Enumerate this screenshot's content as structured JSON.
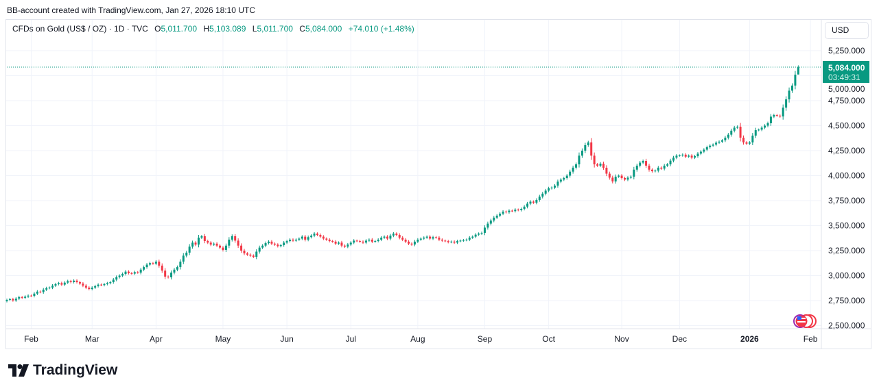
{
  "caption": "BB-account created with TradingView.com, Jan 27, 2026 18:10 UTC",
  "legend": {
    "symbol": "CFDs on Gold (US$ / OZ) · 1D · TVC",
    "o_label": "O",
    "o": "5,011.700",
    "h_label": "H",
    "h": "5,103.089",
    "l_label": "L",
    "l": "5,011.700",
    "c_label": "C",
    "c": "5,084.000",
    "change": "+74.010 (+1.48%)"
  },
  "currency_button": "USD",
  "last_price": {
    "value": "5,084.000",
    "countdown": "03:49:31"
  },
  "brand": "TradingView",
  "colors": {
    "up": "#089981",
    "down": "#f23645",
    "grid": "#f0f3fa"
  },
  "chart_data": {
    "type": "candlestick",
    "title": "CFDs on Gold (US$ / OZ) · 1D · TVC",
    "ylim": [
      2450,
      5330
    ],
    "y_ticks": [
      5250,
      5000,
      4750,
      4500,
      4250,
      4000,
      3750,
      3500,
      3250,
      3000,
      2750,
      2500
    ],
    "y_tick_labels": [
      "5,250.000",
      "5,000.000",
      "4,750.000",
      "4,500.000",
      "4,250.000",
      "4,000.000",
      "3,750.000",
      "3,500.000",
      "3,250.000",
      "3,000.000",
      "2,750.000",
      "2,500.000"
    ],
    "x_ticks": [
      {
        "label": "Feb",
        "index": 8
      },
      {
        "label": "Mar",
        "index": 28
      },
      {
        "label": "Apr",
        "index": 49
      },
      {
        "label": "May",
        "index": 71
      },
      {
        "label": "Jun",
        "index": 92
      },
      {
        "label": "Jul",
        "index": 113
      },
      {
        "label": "Aug",
        "index": 135
      },
      {
        "label": "Sep",
        "index": 157
      },
      {
        "label": "Oct",
        "index": 178
      },
      {
        "label": "Nov",
        "index": 202
      },
      {
        "label": "Dec",
        "index": 221
      },
      {
        "label": "2026",
        "index": 244,
        "bold": true
      },
      {
        "label": "Feb",
        "index": 264
      }
    ],
    "first_open": 2745,
    "last_candle": {
      "open": 5011.7,
      "high": 5103.089,
      "low": 5011.7,
      "close": 5084.0
    },
    "closes": [
      2757,
      2765,
      2752,
      2770,
      2785,
      2778,
      2790,
      2800,
      2798,
      2820,
      2840,
      2835,
      2860,
      2875,
      2880,
      2900,
      2915,
      2925,
      2910,
      2930,
      2945,
      2935,
      2950,
      2935,
      2920,
      2900,
      2880,
      2866,
      2880,
      2895,
      2910,
      2905,
      2915,
      2925,
      2935,
      2960,
      2985,
      3000,
      3017,
      3040,
      3025,
      3020,
      3035,
      3030,
      3060,
      3085,
      3110,
      3125,
      3120,
      3140,
      3100,
      3050,
      2990,
      2983,
      3030,
      3060,
      3085,
      3140,
      3200,
      3230,
      3290,
      3330,
      3310,
      3380,
      3394,
      3346,
      3330,
      3310,
      3320,
      3300,
      3280,
      3257,
      3300,
      3360,
      3394,
      3350,
      3300,
      3250,
      3222,
      3210,
      3200,
      3188,
      3240,
      3280,
      3300,
      3325,
      3340,
      3320,
      3310,
      3295,
      3305,
      3330,
      3345,
      3360,
      3350,
      3360,
      3370,
      3390,
      3360,
      3385,
      3400,
      3420,
      3407,
      3390,
      3370,
      3360,
      3346,
      3340,
      3320,
      3330,
      3300,
      3290,
      3311,
      3330,
      3350,
      3346,
      3340,
      3330,
      3350,
      3360,
      3340,
      3346,
      3360,
      3380,
      3390,
      3370,
      3400,
      3420,
      3407,
      3380,
      3360,
      3340,
      3320,
      3311,
      3340,
      3360,
      3370,
      3380,
      3390,
      3370,
      3385,
      3380,
      3360,
      3350,
      3345,
      3335,
      3340,
      3330,
      3345,
      3350,
      3355,
      3360,
      3380,
      3390,
      3410,
      3420,
      3428,
      3480,
      3520,
      3551,
      3580,
      3600,
      3620,
      3640,
      3633,
      3650,
      3645,
      3660,
      3655,
      3668,
      3690,
      3720,
      3740,
      3730,
      3757,
      3790,
      3820,
      3850,
      3873,
      3880,
      3900,
      3940,
      3960,
      3976,
      4000,
      4040,
      4080,
      4113,
      4200,
      4250,
      4305,
      4332,
      4200,
      4113,
      4100,
      4120,
      4079,
      4020,
      3980,
      3942,
      3990,
      4000,
      3976,
      3960,
      3980,
      3990,
      4060,
      4100,
      4130,
      4147,
      4100,
      4060,
      4044,
      4050,
      4080,
      4070,
      4100,
      4113,
      4150,
      4180,
      4200,
      4202,
      4210,
      4190,
      4200,
      4180,
      4195,
      4220,
      4240,
      4260,
      4284,
      4300,
      4310,
      4330,
      4340,
      4353,
      4380,
      4410,
      4450,
      4480,
      4490,
      4380,
      4332,
      4320,
      4332,
      4400,
      4455,
      4460,
      4480,
      4500,
      4524,
      4590,
      4606,
      4600,
      4592,
      4680,
      4763,
      4850,
      4901,
      5010,
      5084
    ]
  }
}
